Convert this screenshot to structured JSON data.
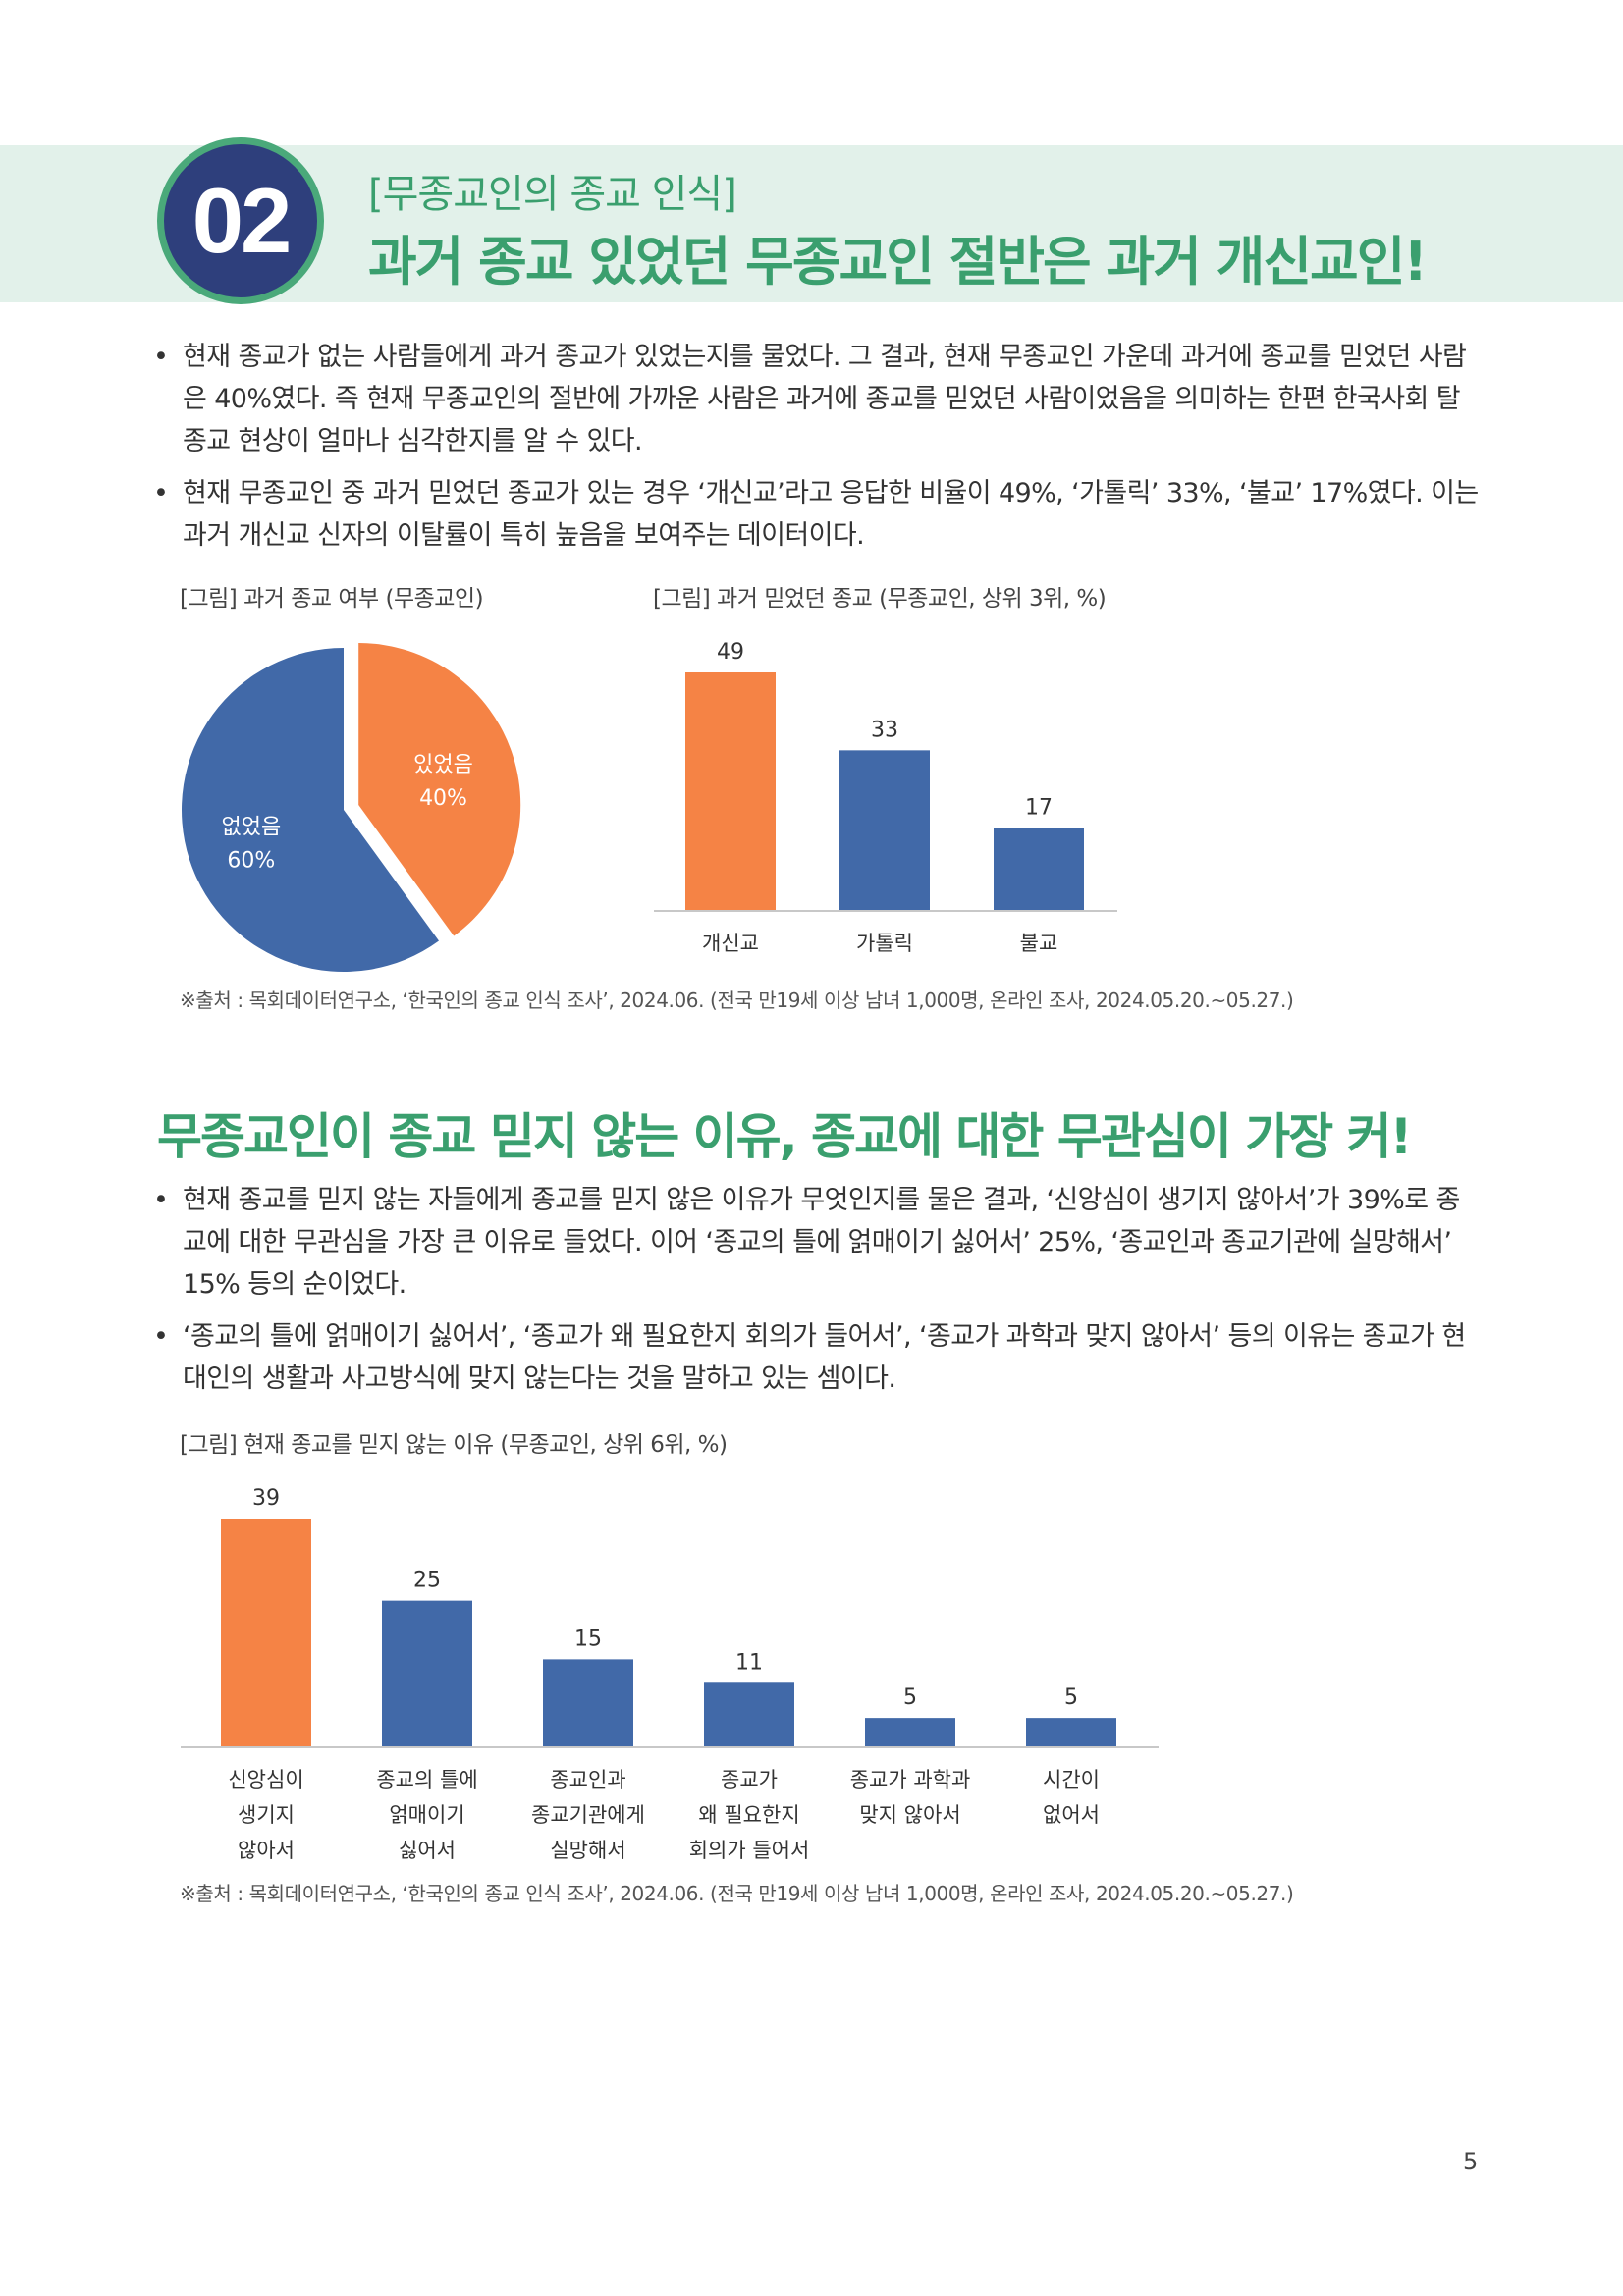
{
  "header": {
    "number": "02",
    "subtitle": "[무종교인의 종교 인식]",
    "title": "과거 종교 있었던 무종교인 절반은 과거 개신교인!"
  },
  "section1": {
    "bullets": [
      "현재 종교가 없는 사람들에게 과거 종교가 있었는지를 물었다. 그 결과, 현재 무종교인 가운데 과거에 종교를 믿었던 사람은 40%였다. 즉 현재 무종교인의 절반에 가까운 사람은 과거에 종교를 믿었던 사람이었음을 의미하는 한편 한국사회 탈종교 현상이 얼마나 심각한지를 알 수 있다.",
      "현재 무종교인 중 과거 믿었던 종교가 있는 경우 ‘개신교’라고 응답한 비율이 49%, ‘가톨릭’ 33%, ‘불교’ 17%였다. 이는 과거 개신교 신자의 이탈률이 특히 높음을 보여주는 데이터이다."
    ],
    "pie_caption": "[그림] 과거 종교 여부 (무종교인)",
    "bar_caption": "[그림] 과거 믿었던 종교 (무종교인, 상위 3위, %)",
    "source": "※출처 : 목회데이터연구소, ‘한국인의 종교 인식 조사’, 2024.06. (전국 만19세 이상 남녀 1,000명, 온라인 조사, 2024.05.20.~05.27.)"
  },
  "section2": {
    "title": "무종교인이 종교 믿지 않는 이유, 종교에 대한 무관심이 가장 커!",
    "bullets": [
      "현재 종교를 믿지 않는 자들에게 종교를 믿지 않은 이유가 무엇인지를 물은 결과, ‘신앙심이 생기지 않아서’가 39%로 종교에 대한 무관심을 가장 큰 이유로 들었다. 이어 ‘종교의 틀에 얽매이기 싫어서’ 25%, ‘종교인과 종교기관에 실망해서’ 15% 등의 순이었다.",
      "‘종교의 틀에 얽매이기 싫어서’, ‘종교가 왜 필요한지 회의가 들어서’, ‘종교가 과학과 맞지 않아서’ 등의 이유는 종교가 현대인의 생활과 사고방식에 맞지 않는다는 것을 말하고 있는 셈이다."
    ],
    "bar_caption": "[그림] 현재 종교를 믿지 않는 이유 (무종교인, 상위 6위, %)",
    "source": "※출처 : 목회데이터연구소, ‘한국인의 종교 인식 조사’, 2024.06. (전국 만19세 이상 남녀 1,000명, 온라인 조사, 2024.05.20.~05.27.)"
  },
  "page_number": "5",
  "colors": {
    "orange": "#f58345",
    "blue": "#4169a8",
    "green": "#3a9f6e",
    "navy": "#2e3f7c"
  },
  "chart_data": [
    {
      "type": "pie",
      "title": "",
      "slices": [
        {
          "label": "있었음",
          "value": 40,
          "display": "40%",
          "color": "#f58345"
        },
        {
          "label": "없었음",
          "value": 60,
          "display": "60%",
          "color": "#4169a8"
        }
      ]
    },
    {
      "type": "bar",
      "title": "",
      "categories": [
        "개신교",
        "가톨릭",
        "불교"
      ],
      "values": [
        49,
        33,
        17
      ],
      "colors": [
        "#f58345",
        "#4169a8",
        "#4169a8"
      ],
      "ylim": [
        0,
        49
      ]
    },
    {
      "type": "bar",
      "title": "",
      "categories": [
        [
          "신앙심이",
          "생기지",
          "않아서"
        ],
        [
          "종교의 틀에",
          "얽매이기",
          "싫어서"
        ],
        [
          "종교인과",
          "종교기관에게",
          "실망해서"
        ],
        [
          "종교가",
          "왜 필요한지",
          "회의가 들어서"
        ],
        [
          "종교가 과학과",
          "맞지 않아서"
        ],
        [
          "시간이",
          "없어서"
        ]
      ],
      "values": [
        39,
        25,
        15,
        11,
        5,
        5
      ],
      "colors": [
        "#f58345",
        "#4169a8",
        "#4169a8",
        "#4169a8",
        "#4169a8",
        "#4169a8"
      ],
      "ylim": [
        0,
        39
      ]
    }
  ]
}
